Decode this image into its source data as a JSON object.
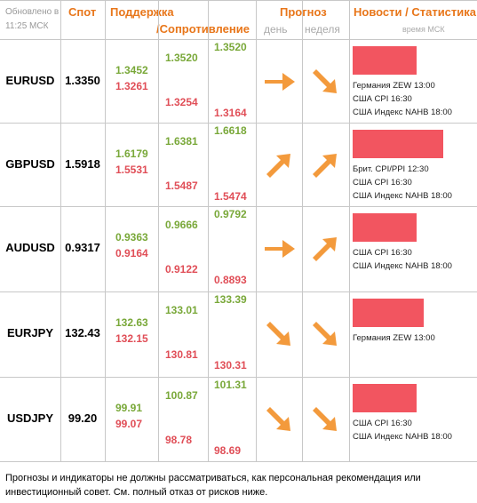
{
  "header": {
    "updated": "Обновлено в 11:25 МСК",
    "spot": "Спот",
    "support": "Поддержка",
    "resistance": "/Сопротивление",
    "forecast": "Прогноз",
    "day": "день",
    "week": "неделя",
    "news": "Новости / Статистика",
    "news_sub": "время МСК"
  },
  "colors": {
    "header": "#e8761a",
    "support": "#e04e57",
    "resistance": "#79a839",
    "arrow": "#f39a3c",
    "bar": "#f25560"
  },
  "rows": [
    {
      "pair": "EURUSD",
      "spot": "1.3350",
      "s1": "1.3452",
      "r1": "1.3261",
      "s2": "1.3520",
      "r2": "1.3254",
      "s3": "1.3520",
      "r3": "1.3164",
      "day": "right-arrow",
      "week": "down-right-arrow",
      "news_level": 0.48,
      "news": [
        "Германия ZEW 13:00",
        "США CPI 16:30",
        "США Индекс NAHB 18:00"
      ]
    },
    {
      "pair": "GBPUSD",
      "spot": "1.5918",
      "s1": "1.6179",
      "r1": "1.5531",
      "s2": "1.6381",
      "r2": "1.5487",
      "s3": "1.6618",
      "r3": "1.5474",
      "day": "up-right-arrow",
      "week": "up-right-arrow",
      "news_level": 0.68,
      "news": [
        "Брит. CPI/PPI 12:30",
        "США CPI 16:30",
        "США Индекс NAHB 18:00"
      ]
    },
    {
      "pair": "AUDUSD",
      "spot": "0.9317",
      "s1": "0.9363",
      "r1": "0.9164",
      "s2": "0.9666",
      "r2": "0.9122",
      "s3": "0.9792",
      "r3": "0.8893",
      "day": "right-arrow",
      "week": "up-right-arrow",
      "news_level": 0.48,
      "news": [
        "США CPI 16:30",
        "США Индекс NAHB 18:00"
      ]
    },
    {
      "pair": "EURJPY",
      "spot": "132.43",
      "s1": "132.63",
      "r1": "132.15",
      "s2": "133.01",
      "r2": "130.81",
      "s3": "133.39",
      "r3": "130.31",
      "day": "down-right-arrow",
      "week": "down-right-arrow",
      "news_level": 0.53,
      "news": [
        "Германия ZEW 13:00"
      ]
    },
    {
      "pair": "USDJPY",
      "spot": "99.20",
      "s1": "99.91",
      "r1": "99.07",
      "s2": "100.87",
      "r2": "98.78",
      "s3": "101.31",
      "r3": "98.69",
      "day": "down-right-arrow",
      "week": "down-right-arrow",
      "news_level": 0.48,
      "news": [
        "США CPI 16:30",
        "США Индекс NAHB 18:00"
      ]
    }
  ],
  "footer": "Прогнозы и индикаторы не должны рассматриваться, как персональная рекомендация или инвестиционный совет. См. полный отказ от рисков ниже."
}
